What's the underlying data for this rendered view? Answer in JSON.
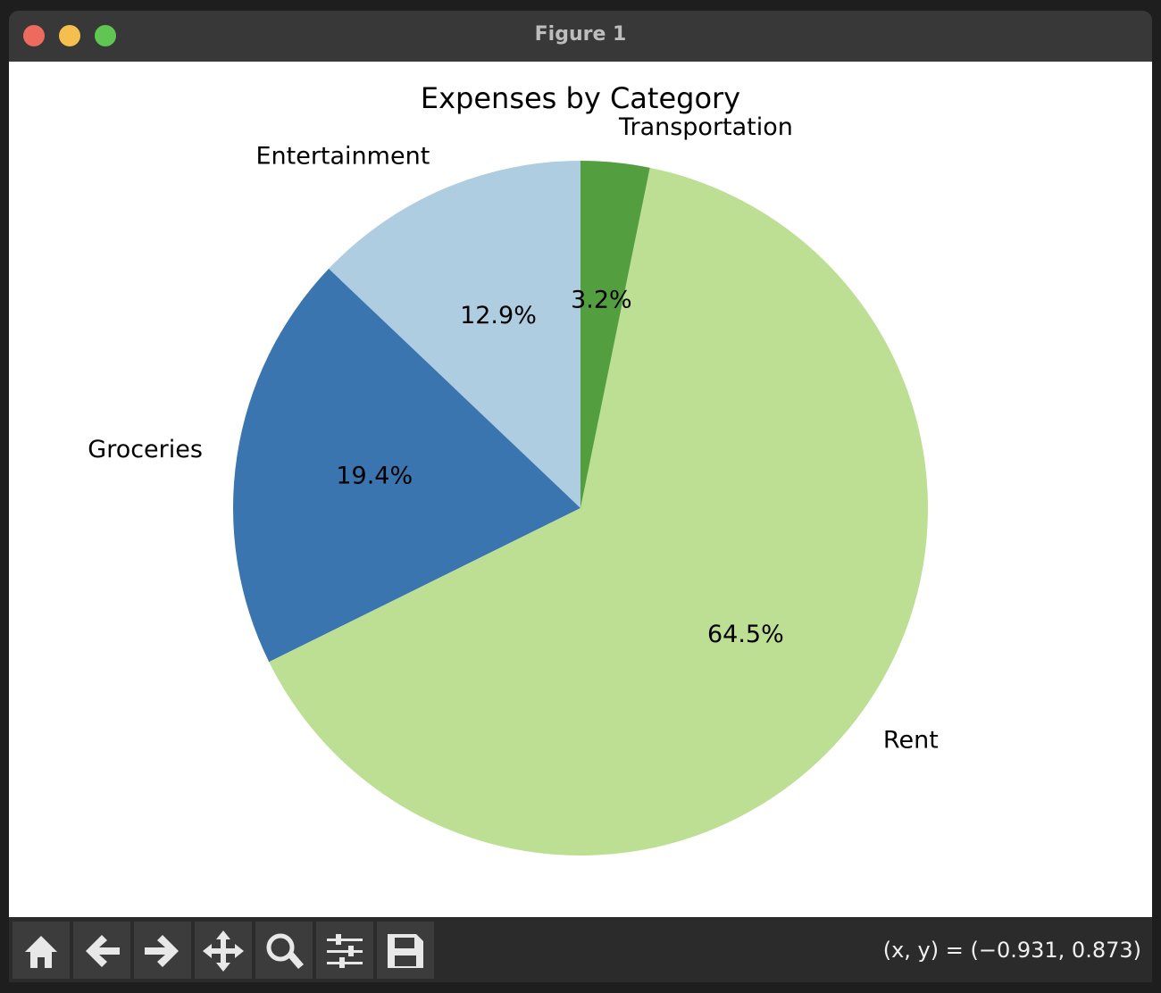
{
  "window": {
    "title": "Figure 1"
  },
  "chart_data": {
    "type": "pie",
    "title": "Expenses by Category",
    "categories": [
      "Entertainment",
      "Groceries",
      "Rent",
      "Transportation"
    ],
    "values": [
      12.9,
      19.4,
      64.5,
      3.2
    ],
    "value_labels": [
      "12.9%",
      "19.4%",
      "64.5%",
      "3.2%"
    ],
    "colors": [
      "#aecde1",
      "#3b75af",
      "#bcdf93",
      "#539e3f"
    ],
    "start_angle": 90,
    "counterclockwise": true
  },
  "status": {
    "coordinates": "(x, y) = (−0.931, 0.873)"
  }
}
